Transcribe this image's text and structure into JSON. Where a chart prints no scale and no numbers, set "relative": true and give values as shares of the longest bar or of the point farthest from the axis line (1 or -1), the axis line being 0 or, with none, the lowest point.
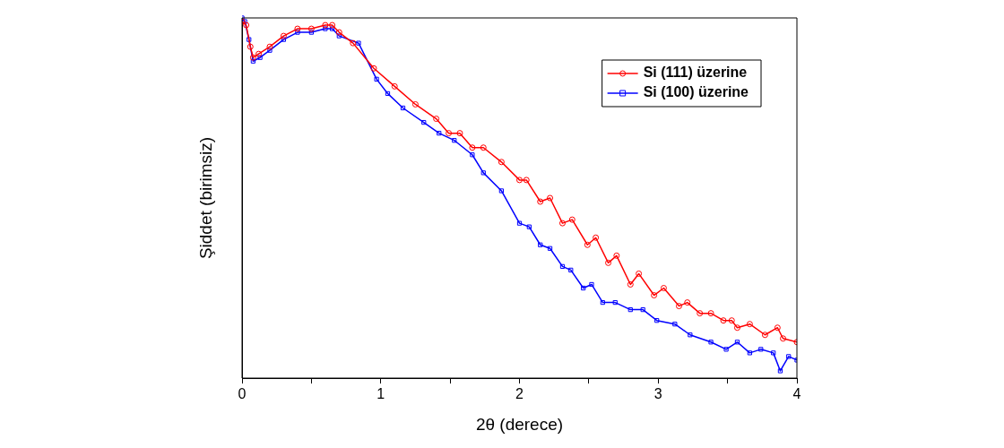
{
  "chart_data": {
    "type": "line",
    "xlabel": "2θ (derece)",
    "ylabel": "Şiddet (birimsiz)",
    "relative": true,
    "xlim": [
      0,
      4
    ],
    "xticks": [
      0,
      {
        "value": 0.5,
        "label": null
      },
      1,
      {
        "value": 1.5,
        "label": null
      },
      2,
      {
        "value": 2.5,
        "label": null
      },
      3,
      {
        "value": 3.5,
        "label": null
      },
      4
    ],
    "grid": false,
    "legend": "top right",
    "series": [
      {
        "name": "Si (111) üzerine",
        "color": "#ff0000",
        "marker": "circle",
        "x": [
          0,
          0.03,
          0.06,
          0.08,
          0.12,
          0.2,
          0.3,
          0.4,
          0.5,
          0.6,
          0.65,
          0.7,
          0.8,
          0.95,
          1.1,
          1.25,
          1.4,
          1.49,
          1.57,
          1.66,
          1.74,
          1.87,
          2.0,
          2.05,
          2.15,
          2.22,
          2.31,
          2.38,
          2.49,
          2.55,
          2.64,
          2.7,
          2.8,
          2.86,
          2.97,
          3.04,
          3.15,
          3.21,
          3.3,
          3.38,
          3.47,
          3.53,
          3.57,
          3.66,
          3.77,
          3.86,
          3.9,
          4.0
        ],
        "values": [
          0.99,
          0.98,
          0.92,
          0.89,
          0.9,
          0.92,
          0.95,
          0.97,
          0.97,
          0.98,
          0.98,
          0.96,
          0.93,
          0.86,
          0.81,
          0.76,
          0.72,
          0.68,
          0.68,
          0.64,
          0.64,
          0.6,
          0.55,
          0.55,
          0.49,
          0.5,
          0.43,
          0.44,
          0.37,
          0.39,
          0.32,
          0.34,
          0.26,
          0.29,
          0.23,
          0.25,
          0.2,
          0.21,
          0.18,
          0.18,
          0.16,
          0.16,
          0.14,
          0.15,
          0.12,
          0.14,
          0.11,
          0.1
        ]
      },
      {
        "name": "Si (100) üzerine",
        "color": "#0000ff",
        "marker": "square",
        "x": [
          0,
          0.02,
          0.05,
          0.08,
          0.13,
          0.2,
          0.3,
          0.4,
          0.5,
          0.6,
          0.65,
          0.7,
          0.84,
          0.97,
          1.05,
          1.16,
          1.31,
          1.42,
          1.53,
          1.66,
          1.74,
          1.87,
          2.0,
          2.07,
          2.15,
          2.22,
          2.31,
          2.37,
          2.46,
          2.52,
          2.6,
          2.69,
          2.8,
          2.89,
          2.99,
          3.12,
          3.23,
          3.38,
          3.49,
          3.57,
          3.66,
          3.74,
          3.83,
          3.88,
          3.94,
          4.0
        ],
        "values": [
          1,
          0.99,
          0.94,
          0.88,
          0.89,
          0.91,
          0.94,
          0.96,
          0.96,
          0.97,
          0.97,
          0.95,
          0.93,
          0.83,
          0.79,
          0.75,
          0.71,
          0.68,
          0.66,
          0.62,
          0.57,
          0.52,
          0.43,
          0.42,
          0.37,
          0.36,
          0.31,
          0.3,
          0.25,
          0.26,
          0.21,
          0.21,
          0.19,
          0.19,
          0.16,
          0.15,
          0.12,
          0.1,
          0.08,
          0.1,
          0.07,
          0.08,
          0.07,
          0.02,
          0.06,
          0.05
        ]
      }
    ]
  }
}
